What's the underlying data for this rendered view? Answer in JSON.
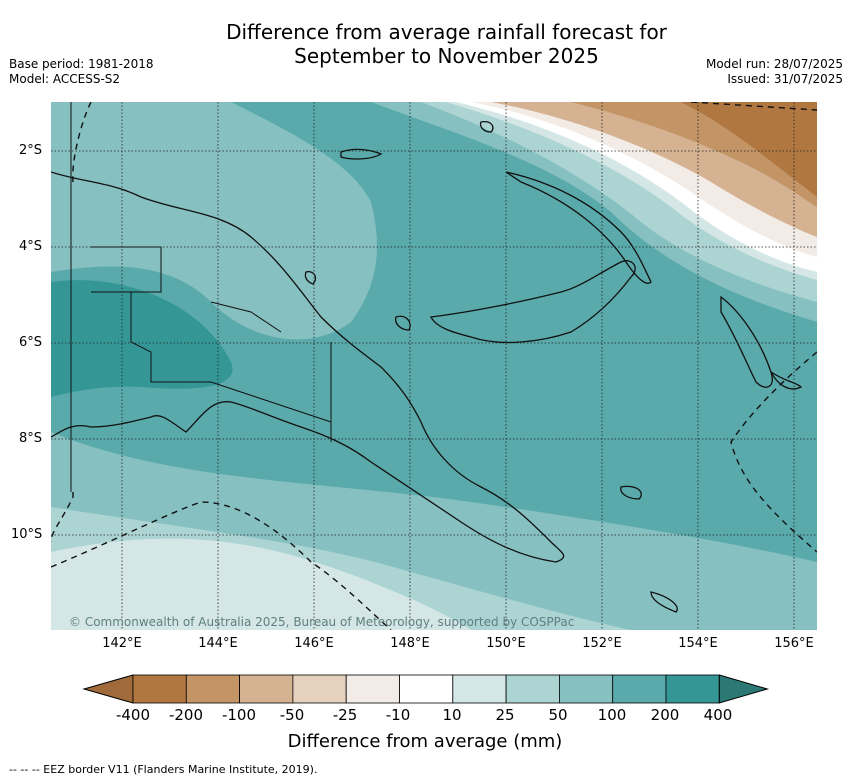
{
  "title": {
    "line1": "Difference from average rainfall forecast for",
    "line2": "September to November 2025"
  },
  "meta": {
    "base_period": "Base period: 1981-2018",
    "model": "Model: ACCESS-S2",
    "model_run": "Model run: 28/07/2025",
    "issued": "Issued: 31/07/2025"
  },
  "map": {
    "lat_labels": [
      "2°S",
      "4°S",
      "6°S",
      "8°S",
      "10°S"
    ],
    "lon_labels": [
      "142°E",
      "144°E",
      "146°E",
      "148°E",
      "150°E",
      "152°E",
      "154°E",
      "156°E"
    ],
    "copyright": "© Commonwealth of Australia 2025, Bureau of Meteorology, supported by COSPPac"
  },
  "legend": {
    "title": "Difference from average (mm)",
    "labels": [
      "-400",
      "-200",
      "-100",
      "-50",
      "-25",
      "-10",
      "10",
      "25",
      "50",
      "100",
      "200",
      "400"
    ],
    "colors": [
      "#a06a3a",
      "#b07840",
      "#c29466",
      "#d4b292",
      "#e6d1be",
      "#f3ece6",
      "#ffffff",
      "#d4e7e6",
      "#acd4d3",
      "#86c0c0",
      "#5aaaab",
      "#349796",
      "#2c7874"
    ]
  },
  "footnote": "--  --  -- EEZ border V11 (Flanders Marine Institute, 2019)."
}
